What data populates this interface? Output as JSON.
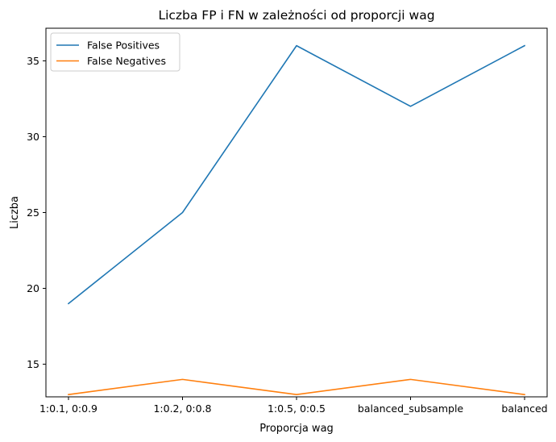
{
  "chart_data": {
    "type": "line",
    "title": "Liczba FP i FN w zależności od proporcji wag",
    "xlabel": "Proporcja wag",
    "ylabel": "Liczba",
    "categories": [
      "1:0.1, 0:0.9",
      "1:0.2, 0:0.8",
      "1:0.5, 0:0.5",
      "balanced_subsample",
      "balanced"
    ],
    "series": [
      {
        "name": "False Positives",
        "values": [
          19,
          25,
          36,
          32,
          36
        ],
        "color": "#1f77b4"
      },
      {
        "name": "False Negatives",
        "values": [
          13,
          14,
          13,
          14,
          13
        ],
        "color": "#ff7f0e"
      }
    ],
    "ylim": [
      12.85,
      37.15
    ],
    "yticks": [
      15,
      20,
      25,
      30,
      35
    ],
    "grid": false,
    "legend": "top-left"
  }
}
